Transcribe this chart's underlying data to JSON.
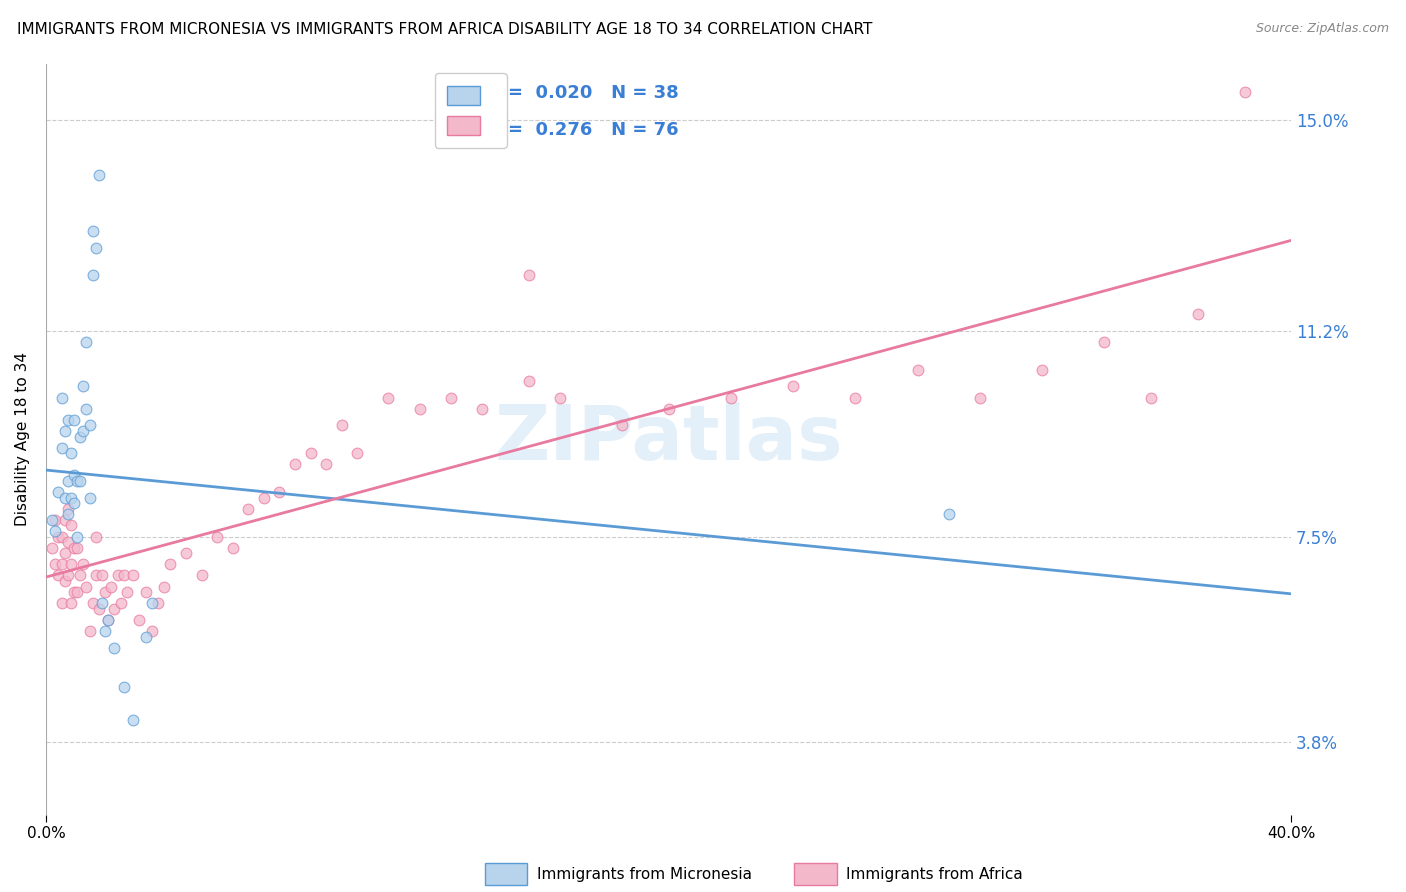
{
  "title": "IMMIGRANTS FROM MICRONESIA VS IMMIGRANTS FROM AFRICA DISABILITY AGE 18 TO 34 CORRELATION CHART",
  "source": "Source: ZipAtlas.com",
  "ylabel_ticks": [
    "3.8%",
    "7.5%",
    "11.2%",
    "15.0%"
  ],
  "ylabel_tick_vals": [
    0.038,
    0.075,
    0.112,
    0.15
  ],
  "ylabel_label": "Disability Age 18 to 34",
  "legend_micronesia_R": "0.020",
  "legend_micronesia_N": "38",
  "legend_africa_R": "0.276",
  "legend_africa_N": "76",
  "color_micronesia_fill": "#b8d4ed",
  "color_micronesia_edge": "#5b9bd5",
  "color_africa_fill": "#f4b8cb",
  "color_africa_edge": "#e87aa0",
  "color_line_micronesia": "#5b9bd5",
  "color_line_africa": "#e87aa0",
  "color_text_blue": "#3a7fd5",
  "watermark": "ZIPatlas",
  "xlim": [
    0.0,
    0.4
  ],
  "ylim": [
    0.025,
    0.16
  ],
  "micronesia_x": [
    0.002,
    0.003,
    0.004,
    0.005,
    0.005,
    0.006,
    0.006,
    0.007,
    0.007,
    0.007,
    0.008,
    0.008,
    0.009,
    0.009,
    0.009,
    0.01,
    0.01,
    0.011,
    0.011,
    0.012,
    0.012,
    0.013,
    0.013,
    0.014,
    0.014,
    0.015,
    0.015,
    0.016,
    0.017,
    0.018,
    0.019,
    0.02,
    0.022,
    0.025,
    0.028,
    0.032,
    0.034,
    0.29
  ],
  "micronesia_y": [
    0.078,
    0.076,
    0.083,
    0.091,
    0.1,
    0.082,
    0.094,
    0.079,
    0.085,
    0.096,
    0.082,
    0.09,
    0.081,
    0.086,
    0.096,
    0.075,
    0.085,
    0.085,
    0.093,
    0.094,
    0.102,
    0.098,
    0.11,
    0.082,
    0.095,
    0.122,
    0.13,
    0.127,
    0.14,
    0.063,
    0.058,
    0.06,
    0.055,
    0.048,
    0.042,
    0.057,
    0.063,
    0.079
  ],
  "africa_x": [
    0.002,
    0.003,
    0.003,
    0.004,
    0.004,
    0.005,
    0.005,
    0.005,
    0.006,
    0.006,
    0.006,
    0.007,
    0.007,
    0.007,
    0.008,
    0.008,
    0.008,
    0.009,
    0.009,
    0.01,
    0.01,
    0.011,
    0.012,
    0.013,
    0.014,
    0.015,
    0.016,
    0.016,
    0.017,
    0.018,
    0.019,
    0.02,
    0.021,
    0.022,
    0.023,
    0.024,
    0.025,
    0.026,
    0.028,
    0.03,
    0.032,
    0.034,
    0.036,
    0.038,
    0.04,
    0.045,
    0.05,
    0.055,
    0.06,
    0.065,
    0.07,
    0.075,
    0.08,
    0.085,
    0.09,
    0.095,
    0.1,
    0.11,
    0.12,
    0.13,
    0.14,
    0.155,
    0.165,
    0.185,
    0.2,
    0.22,
    0.24,
    0.26,
    0.28,
    0.3,
    0.32,
    0.34,
    0.355,
    0.37,
    0.385,
    0.155
  ],
  "africa_y": [
    0.073,
    0.078,
    0.07,
    0.068,
    0.075,
    0.063,
    0.07,
    0.075,
    0.067,
    0.072,
    0.078,
    0.068,
    0.074,
    0.08,
    0.063,
    0.07,
    0.077,
    0.065,
    0.073,
    0.065,
    0.073,
    0.068,
    0.07,
    0.066,
    0.058,
    0.063,
    0.068,
    0.075,
    0.062,
    0.068,
    0.065,
    0.06,
    0.066,
    0.062,
    0.068,
    0.063,
    0.068,
    0.065,
    0.068,
    0.06,
    0.065,
    0.058,
    0.063,
    0.066,
    0.07,
    0.072,
    0.068,
    0.075,
    0.073,
    0.08,
    0.082,
    0.083,
    0.088,
    0.09,
    0.088,
    0.095,
    0.09,
    0.1,
    0.098,
    0.1,
    0.098,
    0.103,
    0.1,
    0.095,
    0.098,
    0.1,
    0.102,
    0.1,
    0.105,
    0.1,
    0.105,
    0.11,
    0.1,
    0.115,
    0.155,
    0.122
  ]
}
